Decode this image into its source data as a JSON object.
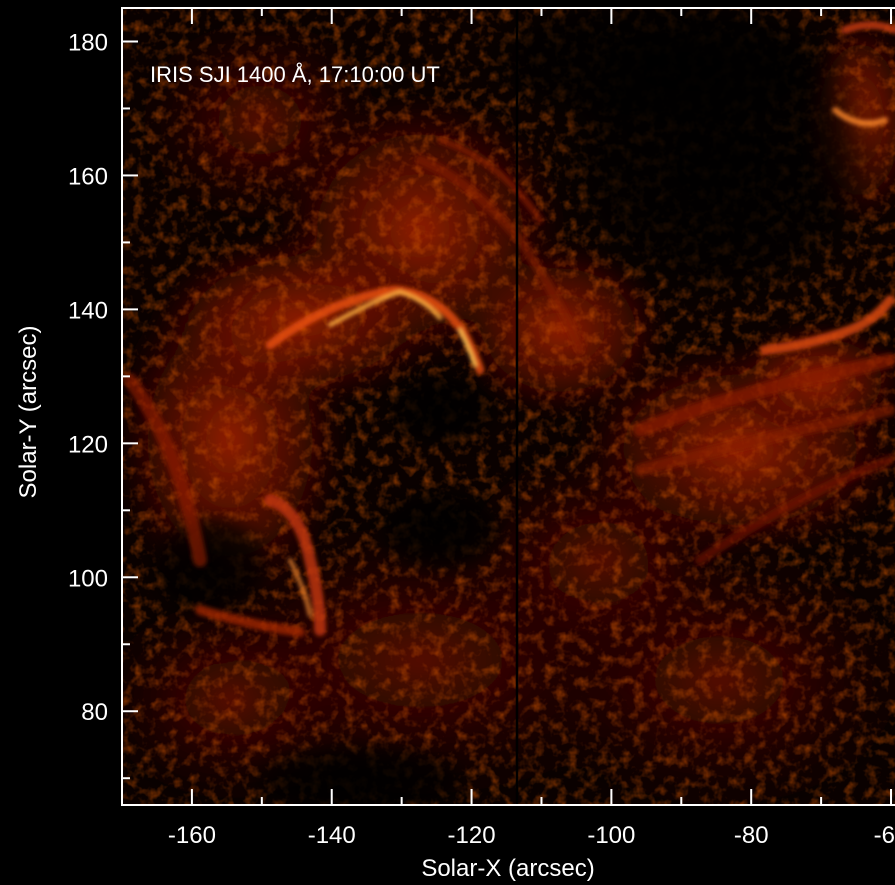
{
  "annotation": "IRIS SJI 1400 Å, 17:10:00 UT",
  "x_axis": {
    "label": "Solar-X (arcsec)",
    "range": [
      -170,
      -57
    ],
    "major_ticks": [
      -160,
      -140,
      -120,
      -100,
      -80,
      -60
    ],
    "tick_labels": [
      "-160",
      "-140",
      "-120",
      "-100",
      "-80",
      "-60"
    ],
    "minor_step": 10
  },
  "y_axis": {
    "label": "Solar-Y (arcsec)",
    "range": [
      66,
      185
    ],
    "major_ticks": [
      80,
      100,
      120,
      140,
      160,
      180
    ],
    "tick_labels": [
      "80",
      "100",
      "120",
      "140",
      "160",
      "180"
    ],
    "minor_step": 10
  },
  "colors": {
    "background": "#000000",
    "axes": "#ffffff",
    "image_colormap": [
      "#000000",
      "#3a0500",
      "#7a1400",
      "#b83000",
      "#e85a10",
      "#ffc040"
    ],
    "slit": "#000000"
  },
  "slit_x": -113.5
}
